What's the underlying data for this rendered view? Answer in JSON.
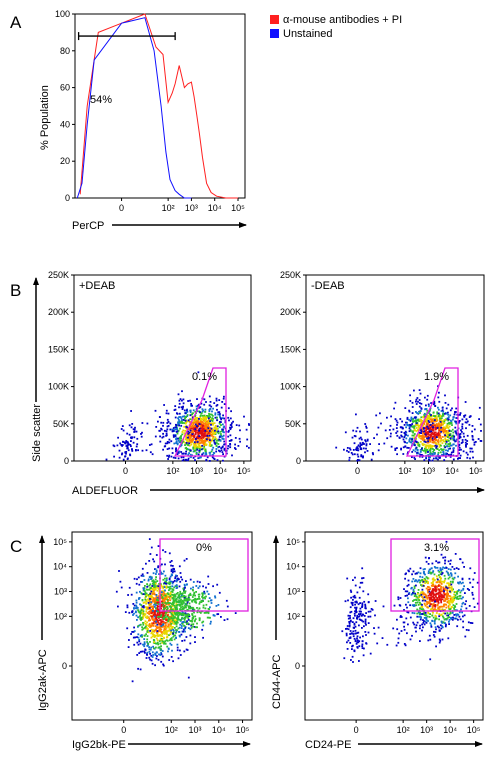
{
  "panel_letters": {
    "a": "A",
    "b": "B",
    "c": "C"
  },
  "colors": {
    "stained": "#ff2020",
    "unstained": "#1010ff",
    "gate": "#e020e0",
    "axis": "#000000"
  },
  "chart_data": [
    {
      "id": "A",
      "type": "line",
      "ylabel": "% Population",
      "xlabel": "PerCP",
      "ylim": [
        0,
        100
      ],
      "x_scale": "log (biexponential)",
      "y_ticks": [
        "0",
        "20",
        "40",
        "60",
        "80",
        "100"
      ],
      "x_ticks": [
        "0",
        "10²",
        "10³",
        "10⁴",
        "10⁵"
      ],
      "legend_position": "top-right, outside plot",
      "series": [
        {
          "name": "α-mouse antibodies + PI",
          "color": "#ff2020",
          "x": [
            -60,
            -30,
            -10,
            0,
            10,
            30,
            60,
            100,
            150,
            200,
            300,
            500,
            700,
            1000,
            1300,
            1700,
            2200,
            3000,
            4500,
            7000,
            12000,
            30000,
            100000
          ],
          "y": [
            2,
            50,
            90,
            95,
            100,
            82,
            78,
            52,
            57,
            62,
            72,
            60,
            62,
            63,
            55,
            45,
            35,
            22,
            8,
            3,
            1,
            0,
            0
          ]
        },
        {
          "name": "Unstained",
          "color": "#1010ff",
          "x": [
            -80,
            -50,
            -30,
            -15,
            0,
            10,
            25,
            50,
            80,
            120,
            200,
            300,
            500,
            1000
          ],
          "y": [
            0,
            8,
            40,
            75,
            95,
            98,
            80,
            50,
            25,
            10,
            4,
            2,
            0,
            0
          ]
        }
      ],
      "annotations": [
        {
          "text": "54%",
          "marker_range": [
            -70,
            200
          ],
          "marker_y": 88
        }
      ]
    },
    {
      "id": "B-left",
      "type": "scatter",
      "panel_label": "+DEAB",
      "gate_label": "0.1%",
      "ylabel": "Side scatter",
      "xlabel": "ALDEFLUOR",
      "ylim": [
        0,
        250000
      ],
      "y_ticks": [
        "0",
        "50K",
        "100K",
        "150K",
        "200K",
        "250K"
      ],
      "x_ticks": [
        "0",
        "10²",
        "10³",
        "10⁴",
        "10⁵"
      ],
      "color_map": "density (blue → green → yellow → red)",
      "population_center": {
        "aldefluor": 1200,
        "side_scatter": 40000
      }
    },
    {
      "id": "B-right",
      "type": "scatter",
      "panel_label": "-DEAB",
      "gate_label": "1.9%",
      "ylim": [
        0,
        250000
      ],
      "y_ticks": [
        "0",
        "50K",
        "100K",
        "150K",
        "200K",
        "250K"
      ],
      "x_ticks": [
        "0",
        "10²",
        "10³",
        "10⁴",
        "10⁵"
      ],
      "color_map": "density (blue → green → yellow → red)",
      "population_center": {
        "aldefluor": 1300,
        "side_scatter": 40000
      }
    },
    {
      "id": "C-left",
      "type": "scatter",
      "gate_label": "0%",
      "ylabel": "IgG2ak-APC",
      "xlabel": "IgG2bk-PE",
      "y_ticks": [
        "0",
        "10²",
        "10³",
        "10⁴",
        "10⁵"
      ],
      "x_ticks": [
        "0",
        "10²",
        "10³",
        "10⁴",
        "10⁵"
      ],
      "color_map": "density (blue → green → yellow → red)",
      "population_center": {
        "pe": 30,
        "apc": 150
      }
    },
    {
      "id": "C-right",
      "type": "scatter",
      "gate_label": "3.1%",
      "ylabel": "CD44-APC",
      "xlabel": "CD24-PE",
      "y_ticks": [
        "0",
        "10²",
        "10³",
        "10⁴",
        "10⁵"
      ],
      "x_ticks": [
        "0",
        "10²",
        "10³",
        "10⁴",
        "10⁵"
      ],
      "color_map": "density (blue → green → yellow → red)",
      "population_center": {
        "pe": 2500,
        "apc": 700
      }
    }
  ]
}
